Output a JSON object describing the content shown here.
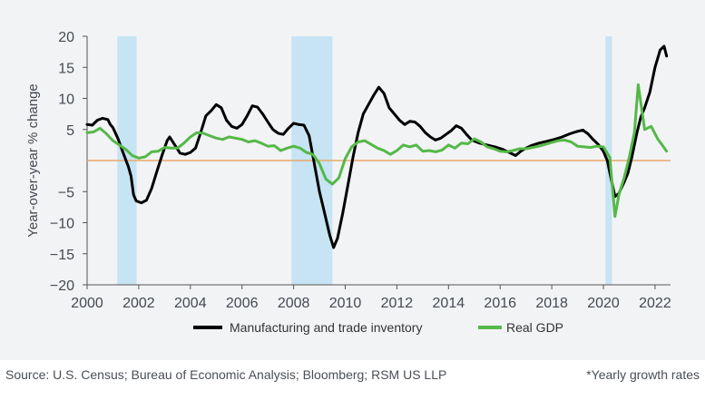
{
  "chart_data": {
    "type": "line",
    "ylabel": "Year-over-year % change",
    "xlim": [
      2000,
      2022.6
    ],
    "ylim": [
      -20,
      20
    ],
    "yticks": [
      20,
      15,
      10,
      5,
      -5,
      -10,
      -15,
      -20
    ],
    "xticks": [
      2000,
      2002,
      2004,
      2006,
      2008,
      2010,
      2012,
      2014,
      2016,
      2018,
      2020,
      2022
    ],
    "reference_line": 0,
    "recessions": [
      [
        2001.17,
        2001.92
      ],
      [
        2007.92,
        2009.5
      ],
      [
        2020.08,
        2020.33
      ]
    ],
    "legend_position": "bottom",
    "series": [
      {
        "name": "Manufacturing and trade inventory",
        "color": "#000000",
        "points": [
          [
            2000.0,
            5.8
          ],
          [
            2000.2,
            5.7
          ],
          [
            2000.4,
            6.5
          ],
          [
            2000.6,
            6.8
          ],
          [
            2000.8,
            6.6
          ],
          [
            2000.9,
            5.8
          ],
          [
            2001.0,
            5.3
          ],
          [
            2001.2,
            3.5
          ],
          [
            2001.4,
            1.2
          ],
          [
            2001.6,
            -1.0
          ],
          [
            2001.7,
            -2.5
          ],
          [
            2001.8,
            -5.5
          ],
          [
            2001.9,
            -6.5
          ],
          [
            2002.1,
            -6.8
          ],
          [
            2002.3,
            -6.4
          ],
          [
            2002.5,
            -4.5
          ],
          [
            2002.7,
            -1.8
          ],
          [
            2002.9,
            0.8
          ],
          [
            2003.1,
            3.2
          ],
          [
            2003.2,
            3.8
          ],
          [
            2003.4,
            2.5
          ],
          [
            2003.6,
            1.2
          ],
          [
            2003.8,
            1.0
          ],
          [
            2004.0,
            1.3
          ],
          [
            2004.2,
            2.0
          ],
          [
            2004.4,
            4.5
          ],
          [
            2004.6,
            7.2
          ],
          [
            2004.8,
            8.0
          ],
          [
            2005.0,
            9.0
          ],
          [
            2005.2,
            8.5
          ],
          [
            2005.4,
            6.5
          ],
          [
            2005.6,
            5.5
          ],
          [
            2005.8,
            5.2
          ],
          [
            2006.0,
            5.8
          ],
          [
            2006.2,
            7.2
          ],
          [
            2006.4,
            8.8
          ],
          [
            2006.6,
            8.6
          ],
          [
            2006.8,
            7.5
          ],
          [
            2007.0,
            6.2
          ],
          [
            2007.2,
            5.0
          ],
          [
            2007.4,
            4.4
          ],
          [
            2007.6,
            4.2
          ],
          [
            2007.8,
            5.2
          ],
          [
            2008.0,
            6.0
          ],
          [
            2008.2,
            5.8
          ],
          [
            2008.4,
            5.7
          ],
          [
            2008.6,
            4.0
          ],
          [
            2008.8,
            -0.5
          ],
          [
            2009.0,
            -5.0
          ],
          [
            2009.2,
            -8.5
          ],
          [
            2009.4,
            -12.0
          ],
          [
            2009.55,
            -14.0
          ],
          [
            2009.7,
            -12.5
          ],
          [
            2009.9,
            -8.5
          ],
          [
            2010.1,
            -4.0
          ],
          [
            2010.3,
            0.5
          ],
          [
            2010.5,
            4.5
          ],
          [
            2010.7,
            7.5
          ],
          [
            2010.9,
            9.0
          ],
          [
            2011.1,
            10.5
          ],
          [
            2011.3,
            11.8
          ],
          [
            2011.5,
            10.8
          ],
          [
            2011.7,
            8.5
          ],
          [
            2011.9,
            7.5
          ],
          [
            2012.1,
            6.5
          ],
          [
            2012.3,
            5.8
          ],
          [
            2012.5,
            6.3
          ],
          [
            2012.7,
            6.2
          ],
          [
            2012.9,
            5.5
          ],
          [
            2013.1,
            4.5
          ],
          [
            2013.3,
            3.8
          ],
          [
            2013.5,
            3.3
          ],
          [
            2013.7,
            3.6
          ],
          [
            2013.9,
            4.2
          ],
          [
            2014.1,
            4.8
          ],
          [
            2014.3,
            5.6
          ],
          [
            2014.5,
            5.2
          ],
          [
            2014.7,
            4.2
          ],
          [
            2014.9,
            3.3
          ],
          [
            2015.2,
            2.8
          ],
          [
            2015.5,
            2.5
          ],
          [
            2015.8,
            2.2
          ],
          [
            2016.1,
            1.8
          ],
          [
            2016.4,
            1.2
          ],
          [
            2016.6,
            0.8
          ],
          [
            2016.8,
            1.5
          ],
          [
            2017.0,
            2.0
          ],
          [
            2017.2,
            2.4
          ],
          [
            2017.5,
            2.8
          ],
          [
            2017.8,
            3.1
          ],
          [
            2018.1,
            3.4
          ],
          [
            2018.4,
            3.8
          ],
          [
            2018.7,
            4.3
          ],
          [
            2019.0,
            4.7
          ],
          [
            2019.2,
            4.9
          ],
          [
            2019.4,
            4.3
          ],
          [
            2019.6,
            3.4
          ],
          [
            2019.8,
            2.6
          ],
          [
            2020.0,
            1.5
          ],
          [
            2020.15,
            0.0
          ],
          [
            2020.3,
            -3.0
          ],
          [
            2020.45,
            -5.8
          ],
          [
            2020.6,
            -5.3
          ],
          [
            2020.8,
            -3.5
          ],
          [
            2020.95,
            -2.0
          ],
          [
            2021.1,
            0.5
          ],
          [
            2021.3,
            4.5
          ],
          [
            2021.45,
            7.0
          ],
          [
            2021.6,
            8.5
          ],
          [
            2021.8,
            11.0
          ],
          [
            2022.0,
            15.0
          ],
          [
            2022.2,
            17.8
          ],
          [
            2022.35,
            18.4
          ],
          [
            2022.45,
            16.8
          ]
        ]
      },
      {
        "name": "Real GDP",
        "color": "#55b848",
        "points": [
          [
            2000.0,
            4.5
          ],
          [
            2000.25,
            4.6
          ],
          [
            2000.5,
            5.2
          ],
          [
            2000.75,
            4.3
          ],
          [
            2001.0,
            3.2
          ],
          [
            2001.25,
            2.5
          ],
          [
            2001.5,
            1.8
          ],
          [
            2001.75,
            0.8
          ],
          [
            2002.0,
            0.4
          ],
          [
            2002.25,
            0.6
          ],
          [
            2002.5,
            1.4
          ],
          [
            2002.75,
            1.5
          ],
          [
            2003.0,
            2.1
          ],
          [
            2003.25,
            2.0
          ],
          [
            2003.5,
            2.0
          ],
          [
            2003.75,
            2.8
          ],
          [
            2004.0,
            3.8
          ],
          [
            2004.25,
            4.5
          ],
          [
            2004.5,
            4.4
          ],
          [
            2004.75,
            4.0
          ],
          [
            2005.0,
            3.6
          ],
          [
            2005.25,
            3.4
          ],
          [
            2005.5,
            3.8
          ],
          [
            2005.75,
            3.6
          ],
          [
            2006.0,
            3.4
          ],
          [
            2006.25,
            3.0
          ],
          [
            2006.5,
            3.2
          ],
          [
            2006.75,
            2.8
          ],
          [
            2007.0,
            2.3
          ],
          [
            2007.25,
            2.4
          ],
          [
            2007.5,
            1.6
          ],
          [
            2007.75,
            2.0
          ],
          [
            2008.0,
            2.3
          ],
          [
            2008.25,
            2.0
          ],
          [
            2008.5,
            1.3
          ],
          [
            2008.75,
            1.0
          ],
          [
            2009.0,
            -0.5
          ],
          [
            2009.25,
            -3.0
          ],
          [
            2009.5,
            -3.8
          ],
          [
            2009.75,
            -2.8
          ],
          [
            2010.0,
            0.3
          ],
          [
            2010.25,
            2.2
          ],
          [
            2010.5,
            3.0
          ],
          [
            2010.75,
            3.2
          ],
          [
            2011.0,
            2.6
          ],
          [
            2011.25,
            2.0
          ],
          [
            2011.5,
            1.6
          ],
          [
            2011.75,
            1.0
          ],
          [
            2012.0,
            1.6
          ],
          [
            2012.25,
            2.5
          ],
          [
            2012.5,
            2.2
          ],
          [
            2012.75,
            2.5
          ],
          [
            2013.0,
            1.5
          ],
          [
            2013.25,
            1.6
          ],
          [
            2013.5,
            1.4
          ],
          [
            2013.75,
            1.7
          ],
          [
            2014.0,
            2.5
          ],
          [
            2014.25,
            2.0
          ],
          [
            2014.5,
            2.8
          ],
          [
            2014.75,
            2.7
          ],
          [
            2015.0,
            3.5
          ],
          [
            2015.25,
            3.0
          ],
          [
            2015.5,
            2.2
          ],
          [
            2015.75,
            1.9
          ],
          [
            2016.0,
            1.5
          ],
          [
            2016.25,
            1.4
          ],
          [
            2016.5,
            1.6
          ],
          [
            2016.75,
            1.9
          ],
          [
            2017.0,
            1.9
          ],
          [
            2017.25,
            2.1
          ],
          [
            2017.5,
            2.3
          ],
          [
            2017.75,
            2.6
          ],
          [
            2018.0,
            2.9
          ],
          [
            2018.25,
            3.2
          ],
          [
            2018.5,
            3.3
          ],
          [
            2018.75,
            3.0
          ],
          [
            2019.0,
            2.3
          ],
          [
            2019.25,
            2.2
          ],
          [
            2019.5,
            2.1
          ],
          [
            2019.75,
            2.3
          ],
          [
            2020.0,
            2.2
          ],
          [
            2020.25,
            0.5
          ],
          [
            2020.45,
            -9.0
          ],
          [
            2020.6,
            -5.5
          ],
          [
            2020.8,
            -2.8
          ],
          [
            2021.0,
            0.5
          ],
          [
            2021.2,
            4.5
          ],
          [
            2021.35,
            12.2
          ],
          [
            2021.6,
            5.0
          ],
          [
            2021.85,
            5.5
          ],
          [
            2022.1,
            3.5
          ],
          [
            2022.45,
            1.5
          ]
        ]
      }
    ]
  },
  "footer": {
    "source": "Source: U.S. Census; Bureau of Economic Analysis; Bloomberg; RSM US LLP",
    "note": "*Yearly growth rates"
  }
}
